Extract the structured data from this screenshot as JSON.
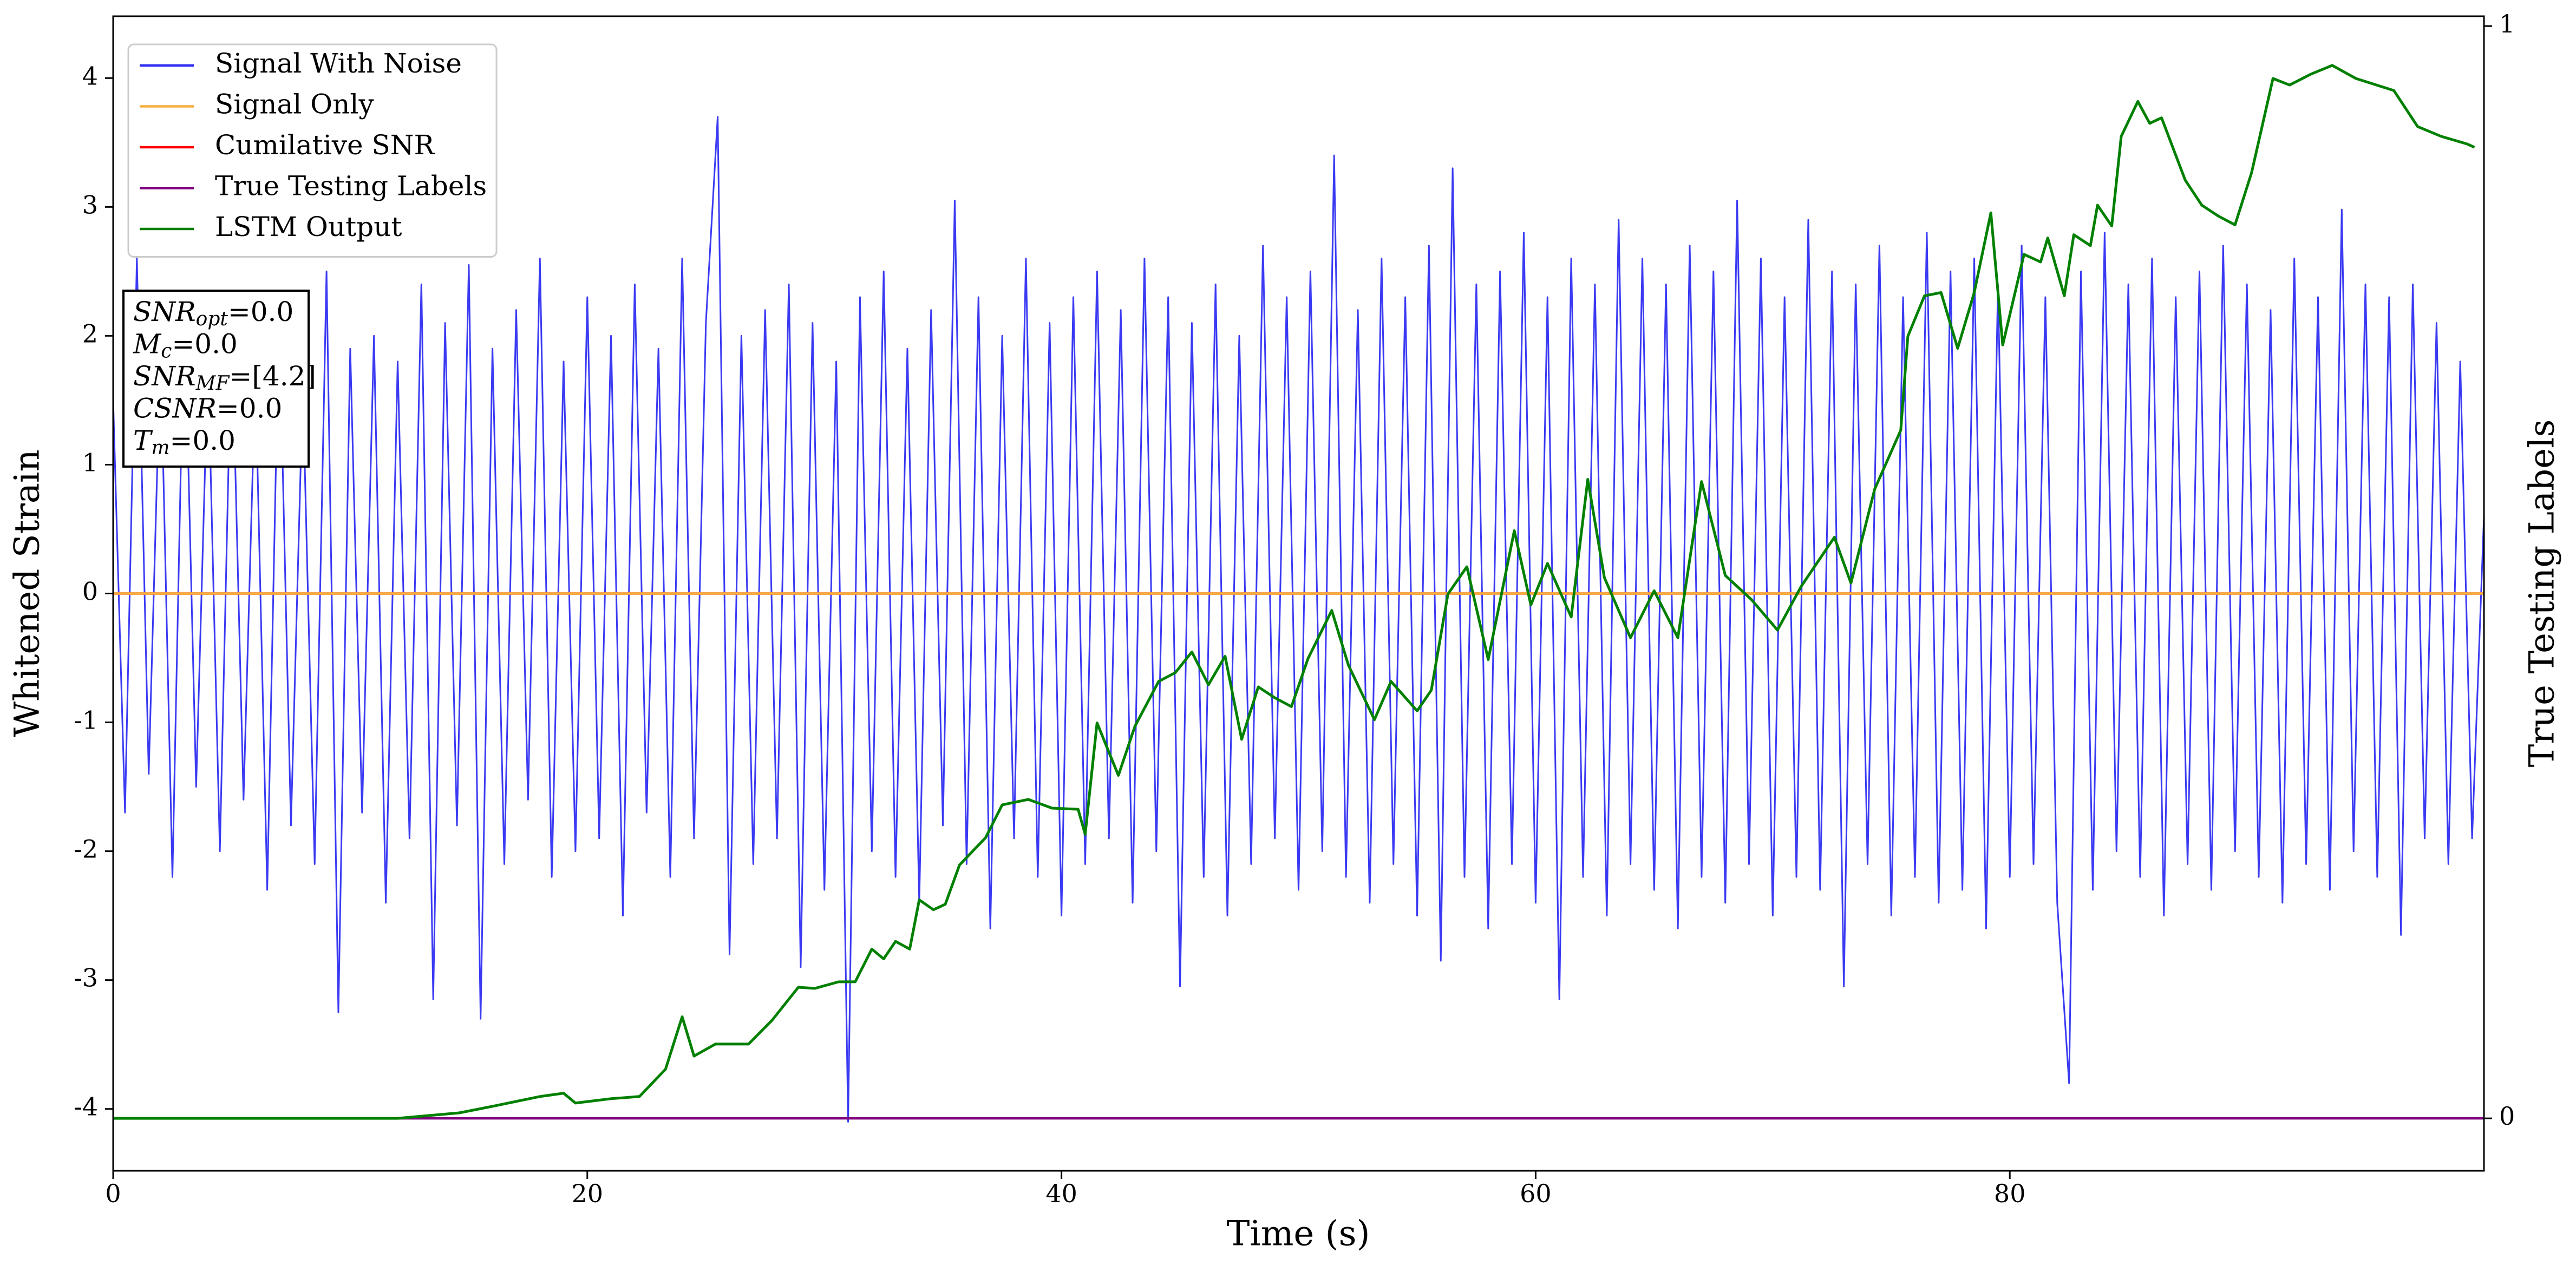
{
  "chart_data": {
    "type": "line",
    "xlabel": "Time (s)",
    "ylabel": "Whitened Strain",
    "y2label": "True Testing Labels",
    "xlim": [
      0,
      100
    ],
    "xticks": [
      0,
      20,
      40,
      60,
      80
    ],
    "ylim": [
      -4.48,
      4.48
    ],
    "yticks": [
      -4,
      -3,
      -2,
      -1,
      0,
      1,
      2,
      3,
      4
    ],
    "y2lim": [
      -0.048,
      1.009
    ],
    "y2ticks": [
      0,
      1
    ],
    "legend": "upper left",
    "annotations": [
      {
        "base": "SNR",
        "sub": "opt",
        "rest": "=0.0"
      },
      {
        "base": "M",
        "sub": "c",
        "rest": "=0.0"
      },
      {
        "base": "SNR",
        "sub": "MF",
        "rest": "=[4.2]"
      },
      {
        "base": "CSNR",
        "rest": "=0.0"
      },
      {
        "base": "T",
        "sub": "m",
        "rest": "=0.0"
      }
    ],
    "series": [
      {
        "name": "Signal With Noise",
        "color": "#2f2ff2",
        "x": [
          0,
          0.5,
          1,
          1.5,
          2,
          2.5,
          3,
          3.5,
          4,
          4.5,
          5,
          5.5,
          6,
          6.5,
          7,
          7.5,
          8,
          8.5,
          9,
          9.5,
          10,
          10.5,
          11,
          11.5,
          12,
          12.5,
          13,
          13.5,
          14,
          14.5,
          15,
          15.5,
          16,
          16.5,
          17,
          17.5,
          18,
          18.5,
          19,
          19.5,
          20,
          20.5,
          21,
          21.5,
          22,
          22.5,
          23,
          23.5,
          24,
          24.5,
          25,
          25.5,
          26,
          26.5,
          27,
          27.5,
          28,
          28.5,
          29,
          29.5,
          30,
          30.5,
          31,
          31.5,
          32,
          32.5,
          33,
          33.5,
          34,
          34.5,
          35,
          35.5,
          36,
          36.5,
          37,
          37.5,
          38,
          38.5,
          39,
          39.5,
          40,
          40.5,
          41,
          41.5,
          42,
          42.5,
          43,
          43.5,
          44,
          44.5,
          45,
          45.5,
          46,
          46.5,
          47,
          47.5,
          48,
          48.5,
          49,
          49.5,
          50,
          50.5,
          51,
          51.5,
          52,
          52.5,
          53,
          53.5,
          54,
          54.5,
          55,
          55.5,
          56,
          56.5,
          57,
          57.5,
          58,
          58.5,
          59,
          59.5,
          60,
          60.5,
          61,
          61.5,
          62,
          62.5,
          63,
          63.5,
          64,
          64.5,
          65,
          65.5,
          66,
          66.5,
          67,
          67.5,
          68,
          68.5,
          69,
          69.5,
          70,
          70.5,
          71,
          71.5,
          72,
          72.5,
          73,
          73.5,
          74,
          74.5,
          75,
          75.5,
          76,
          76.5,
          77,
          77.5,
          78,
          78.5,
          79,
          79.5,
          80,
          80.5,
          81,
          81.5,
          82,
          82.5,
          83,
          83.5,
          84,
          84.5,
          85,
          85.5,
          86,
          86.5,
          87,
          87.5,
          88,
          88.5,
          89,
          89.5,
          90,
          90.5,
          91,
          91.5,
          92,
          92.5,
          93,
          93.5,
          94,
          94.5,
          95,
          95.5,
          96,
          96.5,
          97,
          97.5,
          98,
          98.5,
          99,
          99.5,
          100
        ],
        "values": [
          1.5,
          -1.7,
          2.6,
          -1.4,
          1.9,
          -2.2,
          2.3,
          -1.5,
          1.8,
          -2.0,
          2.1,
          -1.6,
          1.7,
          -2.3,
          2.2,
          -1.8,
          1.6,
          -2.1,
          2.5,
          -3.25,
          1.9,
          -1.7,
          2.0,
          -2.4,
          1.8,
          -1.9,
          2.4,
          -3.15,
          2.1,
          -1.8,
          2.55,
          -3.3,
          1.9,
          -2.1,
          2.2,
          -1.6,
          2.6,
          -2.2,
          1.8,
          -2.0,
          2.3,
          -1.9,
          2.0,
          -2.5,
          2.4,
          -1.7,
          1.9,
          -2.2,
          2.6,
          -1.9,
          2.1,
          3.7,
          -2.8,
          2.0,
          -2.1,
          2.2,
          -1.9,
          2.4,
          -2.9,
          2.1,
          -2.3,
          1.8,
          -4.1,
          2.3,
          -2.0,
          2.5,
          -2.2,
          1.9,
          -2.4,
          2.2,
          -1.8,
          3.05,
          -2.1,
          2.3,
          -2.6,
          2.0,
          -1.9,
          2.6,
          -2.2,
          2.1,
          -2.5,
          2.3,
          -2.1,
          2.5,
          -1.9,
          2.2,
          -2.4,
          2.6,
          -2.0,
          2.3,
          -3.05,
          2.1,
          -2.2,
          2.4,
          -2.5,
          2.0,
          -2.1,
          2.7,
          -1.9,
          2.3,
          -2.3,
          2.5,
          -2.0,
          3.4,
          -2.2,
          2.2,
          -2.4,
          2.6,
          -2.1,
          2.3,
          -2.5,
          2.7,
          -2.85,
          3.3,
          -2.2,
          2.4,
          -2.6,
          2.5,
          -2.1,
          2.8,
          -2.4,
          2.3,
          -3.15,
          2.6,
          -2.2,
          2.4,
          -2.5,
          2.9,
          -2.1,
          2.6,
          -2.3,
          2.4,
          -2.6,
          2.7,
          -2.2,
          2.5,
          -2.4,
          3.05,
          -2.1,
          2.6,
          -2.5,
          2.3,
          -2.2,
          2.9,
          -2.3,
          2.5,
          -3.05,
          2.4,
          -2.1,
          2.7,
          -2.5,
          2.3,
          -2.2,
          2.8,
          -2.4,
          2.5,
          -2.3,
          2.6,
          -2.6,
          2.4,
          -2.2,
          2.7,
          -2.1,
          2.3,
          -2.4,
          -3.8,
          2.5,
          -2.3,
          2.8,
          -2.0,
          2.4,
          -2.2,
          2.6,
          -2.5,
          2.3,
          -2.1,
          2.5,
          -2.3,
          2.7,
          -2.0,
          2.4,
          -2.2,
          2.2,
          -2.4,
          2.6,
          -2.1,
          2.3,
          -2.3,
          2.98,
          -2.0,
          2.4,
          -2.2,
          2.3,
          -2.65,
          2.4,
          -1.9,
          2.1,
          -2.1,
          1.8,
          -1.9,
          0.6
        ]
      },
      {
        "name": "Signal Only",
        "color": "#f5b041",
        "x": [
          0,
          100
        ],
        "values": [
          0,
          0
        ]
      },
      {
        "name": "Cumilative SNR",
        "color": "#ff0000",
        "x": [
          0,
          100
        ],
        "values": [
          0,
          0
        ]
      },
      {
        "name": "True Testing Labels",
        "color": "#800080",
        "axis": "y2",
        "x": [
          0,
          100
        ],
        "values": [
          0,
          0
        ]
      },
      {
        "name": "LSTM Output",
        "color": "#008000",
        "axis": "y2",
        "x": [
          0,
          12,
          14.6,
          16,
          18,
          19,
          19.5,
          21,
          22.2,
          23.3,
          24,
          24.5,
          25.4,
          26.8,
          27.8,
          28.9,
          29.6,
          30.6,
          31.3,
          32,
          32.5,
          33,
          33.6,
          34,
          34.6,
          35.1,
          35.7,
          36.8,
          37.5,
          38.6,
          39.6,
          40.7,
          41,
          41.5,
          42.4,
          43.1,
          44.1,
          44.8,
          45.5,
          46.2,
          46.9,
          47.6,
          48.3,
          49,
          49.7,
          50.4,
          51.4,
          52.1,
          53.2,
          53.9,
          55,
          55.6,
          56.3,
          57.1,
          58,
          59.1,
          59.8,
          60.5,
          61.5,
          62.2,
          62.9,
          64,
          65,
          66,
          67,
          68,
          69.1,
          70.2,
          71.2,
          72.6,
          73.3,
          74.3,
          75.4,
          75.7,
          76.4,
          77.1,
          77.8,
          78.5,
          79.2,
          79.7,
          80.6,
          81.3,
          81.6,
          82.3,
          82.7,
          83.4,
          83.7,
          84.3,
          84.7,
          85.4,
          85.9,
          86.4,
          87.4,
          88.1,
          88.8,
          89.5,
          90.2,
          91.1,
          91.8,
          92.7,
          93.6,
          94.6,
          96.2,
          97.2,
          98.2,
          99.3,
          99.6
        ],
        "values": [
          0,
          0,
          0.005,
          0.011,
          0.02,
          0.023,
          0.014,
          0.018,
          0.02,
          0.045,
          0.093,
          0.057,
          0.068,
          0.068,
          0.09,
          0.12,
          0.119,
          0.125,
          0.125,
          0.155,
          0.146,
          0.162,
          0.155,
          0.2,
          0.191,
          0.196,
          0.232,
          0.257,
          0.287,
          0.292,
          0.284,
          0.283,
          0.26,
          0.362,
          0.314,
          0.359,
          0.4,
          0.408,
          0.427,
          0.397,
          0.423,
          0.347,
          0.395,
          0.385,
          0.377,
          0.421,
          0.465,
          0.415,
          0.365,
          0.4,
          0.373,
          0.392,
          0.48,
          0.505,
          0.42,
          0.538,
          0.47,
          0.508,
          0.459,
          0.585,
          0.495,
          0.44,
          0.483,
          0.44,
          0.583,
          0.497,
          0.475,
          0.447,
          0.487,
          0.532,
          0.49,
          0.576,
          0.63,
          0.716,
          0.753,
          0.756,
          0.705,
          0.756,
          0.829,
          0.708,
          0.791,
          0.784,
          0.806,
          0.753,
          0.809,
          0.799,
          0.836,
          0.817,
          0.899,
          0.931,
          0.911,
          0.916,
          0.859,
          0.836,
          0.826,
          0.818,
          0.866,
          0.952,
          0.946,
          0.956,
          0.964,
          0.952,
          0.941,
          0.908,
          0.899,
          0.892,
          0.889
        ]
      }
    ]
  }
}
